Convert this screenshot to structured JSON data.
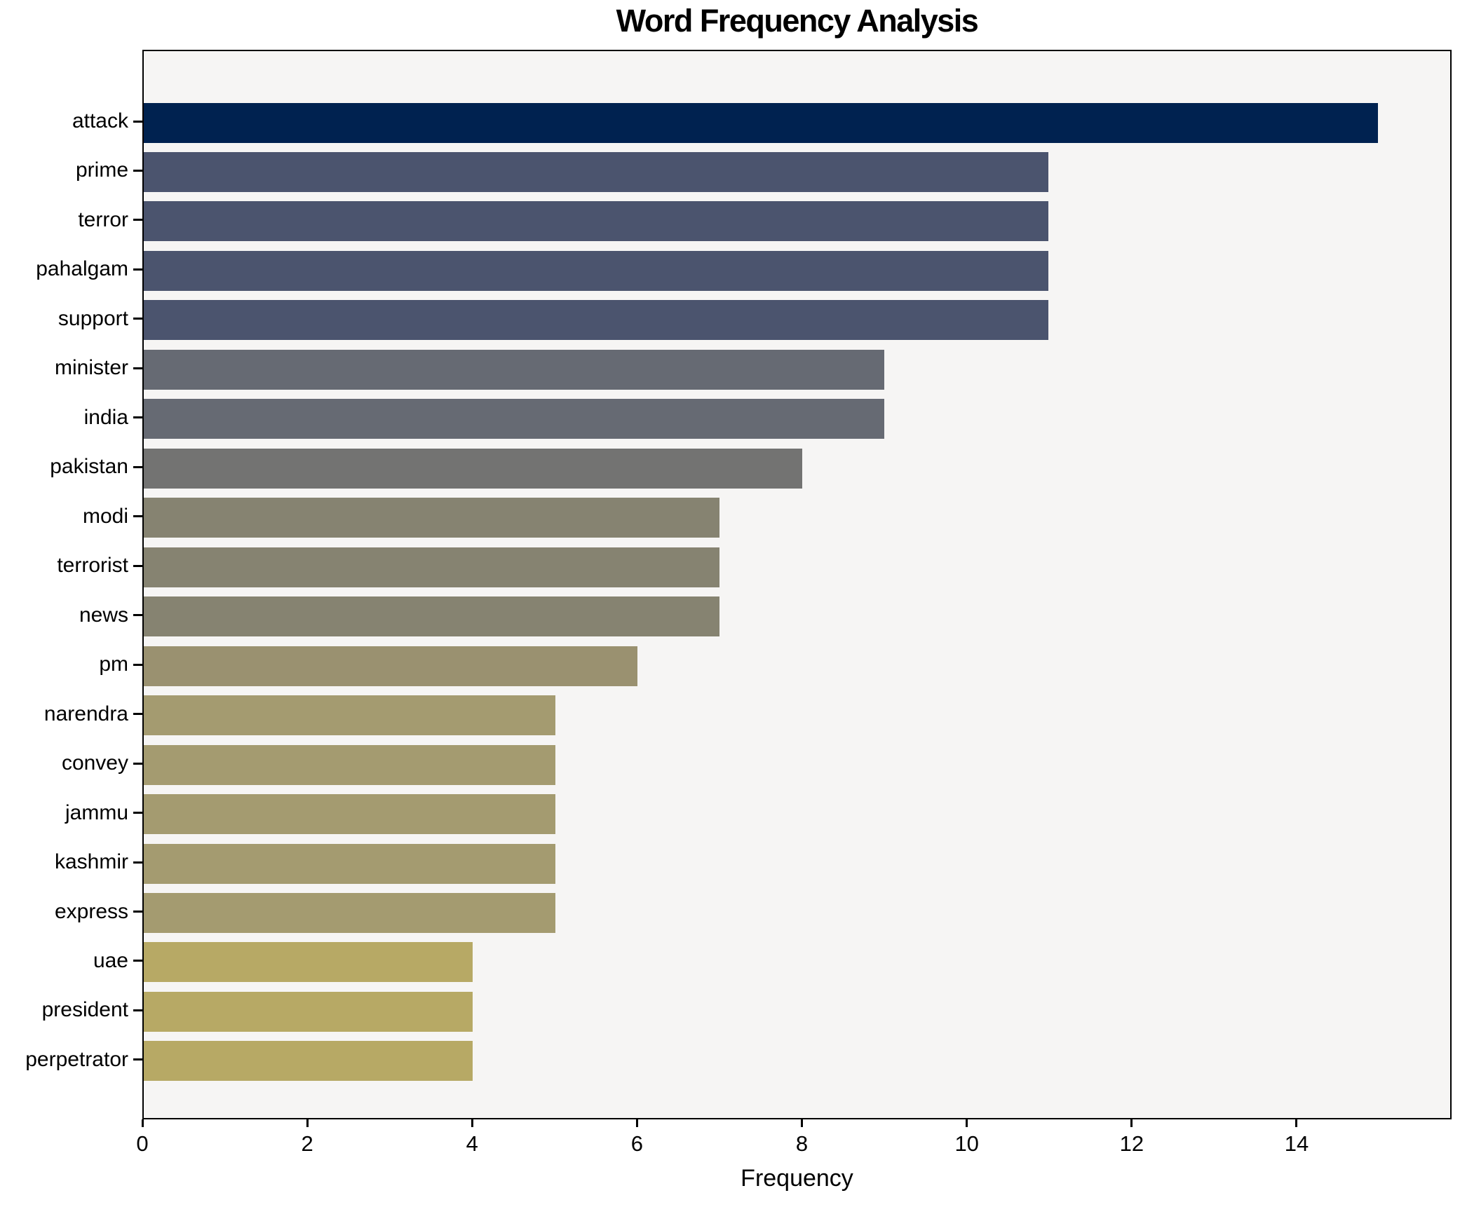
{
  "title": "Word Frequency Analysis",
  "chart_data": {
    "type": "bar",
    "orientation": "horizontal",
    "title": "Word Frequency Analysis",
    "xlabel": "Frequency",
    "ylabel": "",
    "categories": [
      "attack",
      "prime",
      "terror",
      "pahalgam",
      "support",
      "minister",
      "india",
      "pakistan",
      "modi",
      "terrorist",
      "news",
      "pm",
      "narendra",
      "convey",
      "jammu",
      "kashmir",
      "express",
      "uae",
      "president",
      "perpetrator"
    ],
    "values": [
      15,
      11,
      11,
      11,
      11,
      9,
      9,
      8,
      7,
      7,
      7,
      6,
      5,
      5,
      5,
      5,
      5,
      4,
      4,
      4
    ],
    "bar_colors": [
      "#002250",
      "#4b546e",
      "#4b546e",
      "#4b546e",
      "#4b546e",
      "#666a73",
      "#666a73",
      "#737372",
      "#868371",
      "#868371",
      "#868371",
      "#9a9170",
      "#a49b70",
      "#a49b70",
      "#a49b70",
      "#a49b70",
      "#a49b70",
      "#b7a965",
      "#b7a965",
      "#b7a965"
    ],
    "xlim": [
      0,
      15.88
    ],
    "xticks": [
      0,
      2,
      4,
      6,
      8,
      10,
      12,
      14
    ],
    "grid": false,
    "legend": false,
    "plot_background": "#f6f5f4",
    "figure_background": "#ffffff",
    "spine_color": "#000000",
    "text_color": "#000000"
  }
}
